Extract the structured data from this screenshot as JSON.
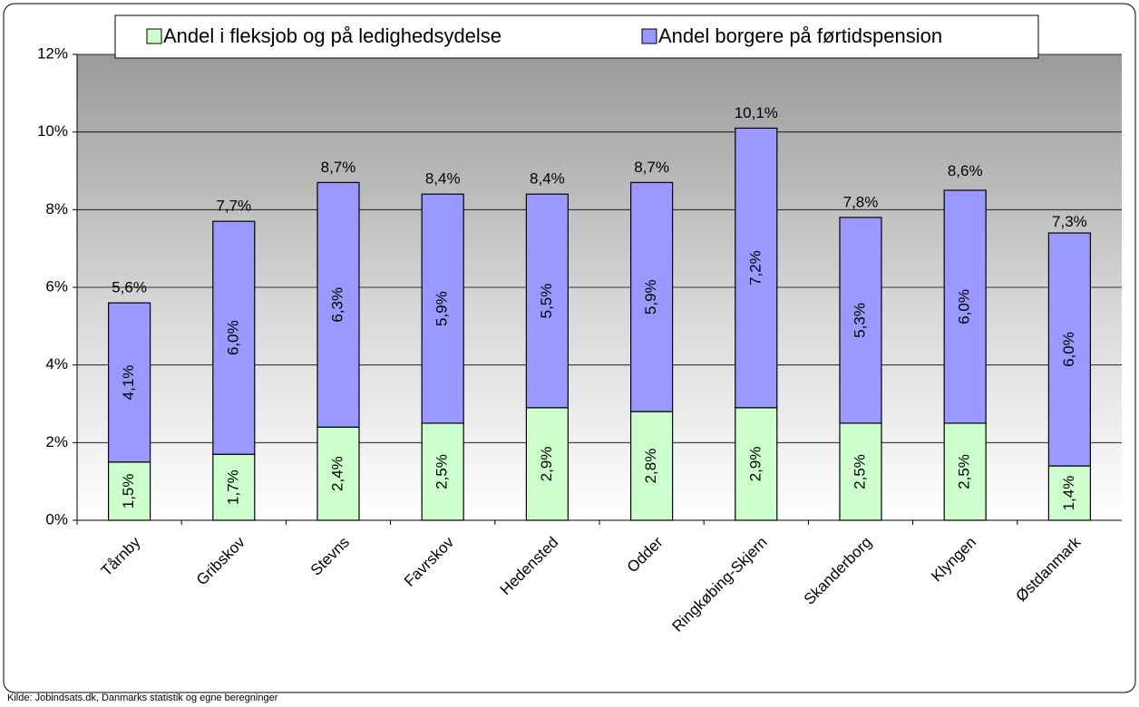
{
  "chart_data": {
    "type": "stacked-bar",
    "categories": [
      "Tårnby",
      "Gribskov",
      "Stevns",
      "Favrskov",
      "Hedensted",
      "Odder",
      "Ringkøbing-Skjern",
      "Skanderborg",
      "Klyngen",
      "Østdanmark"
    ],
    "series": [
      {
        "name": "Andel i fleksjob og på ledighedsydelse",
        "color": "#ccffcc",
        "values": [
          1.5,
          1.7,
          2.4,
          2.5,
          2.9,
          2.8,
          2.9,
          2.5,
          2.5,
          1.4
        ],
        "value_labels": [
          "1,5%",
          "1,7%",
          "2,4%",
          "2,5%",
          "2,9%",
          "2,8%",
          "2,9%",
          "2,5%",
          "2,5%",
          "1,4%"
        ]
      },
      {
        "name": "Andel borgere på førtidspension",
        "color": "#9999ff",
        "values": [
          4.1,
          6.0,
          6.3,
          5.9,
          5.5,
          5.9,
          7.2,
          5.3,
          6.0,
          6.0
        ],
        "value_labels": [
          "4,1%",
          "6,0%",
          "6,3%",
          "5,9%",
          "5,5%",
          "5,9%",
          "7,2%",
          "5,3%",
          "6,0%",
          "6,0%"
        ]
      }
    ],
    "totals": {
      "values": [
        5.6,
        7.7,
        8.7,
        8.4,
        8.4,
        8.7,
        10.1,
        7.8,
        8.6,
        7.3
      ],
      "value_labels": [
        "5,6%",
        "7,7%",
        "8,7%",
        "8,4%",
        "8,4%",
        "8,7%",
        "10,1%",
        "7,8%",
        "8,6%",
        "7,3%"
      ]
    },
    "ylim": [
      0,
      12
    ],
    "yticks": [
      {
        "value": 0,
        "label": "0%"
      },
      {
        "value": 2,
        "label": "2%"
      },
      {
        "value": 4,
        "label": "4%"
      },
      {
        "value": 6,
        "label": "6%"
      },
      {
        "value": 8,
        "label": "8%"
      },
      {
        "value": 10,
        "label": "10%"
      },
      {
        "value": 12,
        "label": "12%"
      }
    ],
    "grid": true,
    "source": "Kilde: Jobindsats.dk, Danmarks statistik og egne beregninger"
  }
}
